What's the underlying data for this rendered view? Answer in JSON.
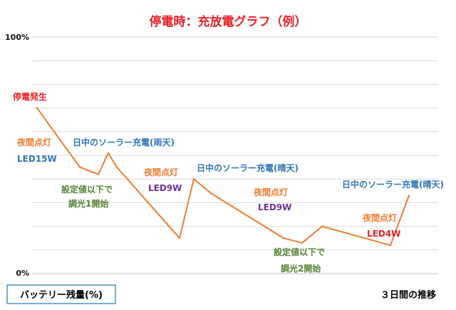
{
  "chart_data": {
    "type": "line",
    "title": "停電時：充放電グラフ（例）",
    "ylabel": "バッテリー残量(%)",
    "xlabel": "３日間の推移",
    "ylim": [
      0,
      100
    ],
    "y_ticks": [
      "100%",
      "0%"
    ],
    "grid": true,
    "series": [
      {
        "x": [
          0.0,
          0.3,
          0.43,
          0.5,
          0.56,
          1.0,
          1.1,
          1.22,
          1.73,
          1.86,
          2.0,
          2.48,
          2.61
        ],
        "values": [
          70,
          45,
          42,
          51,
          45,
          15,
          40,
          34,
          15,
          13,
          20,
          12,
          33
        ]
      }
    ],
    "annotations": [
      {
        "text": "停電発生",
        "color": "#e8222a"
      },
      {
        "text": "夜間点灯",
        "color": "#ed7d31"
      },
      {
        "text": "LED15W",
        "color": "#2e75b6"
      },
      {
        "text": "日中のソーラー充電(雨天)",
        "color": "#2e75b6"
      },
      {
        "text": "設定値以下で",
        "color": "#548235"
      },
      {
        "text": "調光1開始",
        "color": "#548235"
      },
      {
        "text": "夜間点灯",
        "color": "#ed7d31"
      },
      {
        "text": "LED9W",
        "color": "#7030a0"
      },
      {
        "text": "日中のソーラー充電(晴天)",
        "color": "#2e75b6"
      },
      {
        "text": "夜間点灯",
        "color": "#ed7d31"
      },
      {
        "text": "LED9W",
        "color": "#7030a0"
      },
      {
        "text": "設定値以下で",
        "color": "#548235"
      },
      {
        "text": "調光2開始",
        "color": "#548235"
      },
      {
        "text": "夜間点灯",
        "color": "#ed7d31"
      },
      {
        "text": "LED4W",
        "color": "#e8222a"
      },
      {
        "text": "日中のソーラー充電(晴天)",
        "color": "#2e75b6"
      }
    ],
    "colors": {
      "series": "#ed7d31",
      "title": "#e8222a",
      "legend_border": "#4a90c8"
    }
  }
}
